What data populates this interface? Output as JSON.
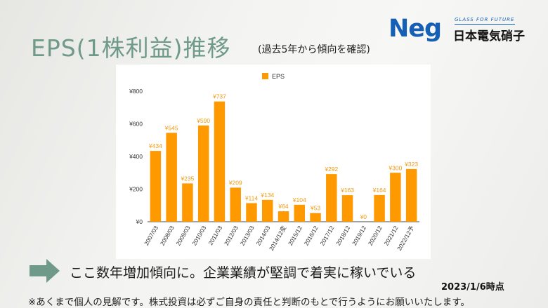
{
  "slide": {
    "title": "EPS(1株利益)推移",
    "subtitle": "(過去5年から傾向を確認)",
    "message": "ここ数年増加傾向に。企業業績が堅調で着実に稼いでいる",
    "date": "2023/1/6時点",
    "disclaimer": "※あくまで個人の見解です。株式投資は必ずご自身の責任と判断のもとで行うようにお願いいたします。"
  },
  "logo": {
    "mark": "Neg",
    "tagline": "GLASS FOR FUTURE",
    "company": "日本電気硝子",
    "color": "#1560b4"
  },
  "chart_data": {
    "type": "bar",
    "categories": [
      "2007/03",
      "2008/03",
      "2009/03",
      "2010/03",
      "2011/03",
      "2012/03",
      "2013/03",
      "2014/03",
      "2014/12変",
      "2015/12",
      "2016/12",
      "2017/12",
      "2018/12",
      "2019/12",
      "2020/12",
      "2021/12",
      "2022/12予"
    ],
    "series": [
      {
        "name": "EPS",
        "values": [
          434,
          545,
          235,
          590,
          737,
          209,
          114,
          134,
          64,
          104,
          53,
          292,
          163,
          0,
          164,
          300,
          323
        ],
        "labels": [
          "¥434",
          "¥545",
          "¥235",
          "¥590",
          "¥737",
          "¥209",
          "¥114",
          "¥134",
          "¥64",
          "¥104",
          "¥53",
          "¥292",
          "¥163",
          "¥0",
          "¥164",
          "¥300",
          "¥323"
        ]
      }
    ],
    "ylim": [
      0,
      800
    ],
    "yticks": [
      0,
      200,
      400,
      600,
      800
    ],
    "ytick_labels": [
      "¥0",
      "¥200",
      "¥400",
      "¥600",
      "¥800"
    ],
    "color": "#ff9900",
    "label_color": "#f29a0e",
    "legend": "top",
    "grid": false
  }
}
